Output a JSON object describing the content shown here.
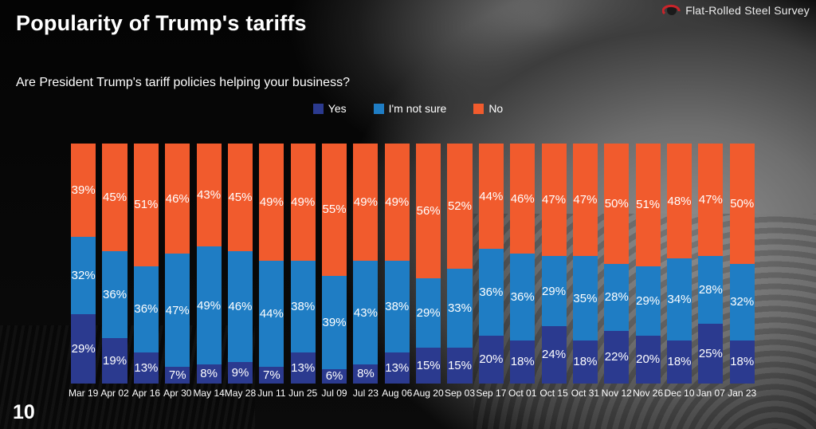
{
  "page": {
    "title": "Popularity of Trump's tariffs",
    "subtitle": "Are President Trump's tariff policies helping your business?",
    "page_number": "10",
    "brand": "Flat-Rolled Steel Survey"
  },
  "colors": {
    "yes": "#2b3a8f",
    "not_sure": "#1f7dc4",
    "no": "#f15b2d",
    "logo_red": "#c9242a",
    "text": "#ffffff"
  },
  "legend": [
    {
      "label": "Yes",
      "color": "#2b3a8f"
    },
    {
      "label": "I'm not sure",
      "color": "#1f7dc4"
    },
    {
      "label": "No",
      "color": "#f15b2d"
    }
  ],
  "chart_data": {
    "type": "bar",
    "stacked": true,
    "title": "Popularity of Trump's tariffs",
    "subtitle": "Are President Trump's tariff policies helping your business?",
    "value_suffix": "%",
    "ylim": [
      0,
      100
    ],
    "grid": false,
    "legend_position": "top",
    "categories": [
      "Mar 19",
      "Apr 02",
      "Apr 16",
      "Apr 30",
      "May 14",
      "May 28",
      "Jun 11",
      "Jun 25",
      "Jul 09",
      "Jul 23",
      "Aug 06",
      "Aug 20",
      "Sep 03",
      "Sep 17",
      "Oct 01",
      "Oct 15",
      "Oct 31",
      "Nov 12",
      "Nov 26",
      "Dec 10",
      "Jan 07",
      "Jan 23"
    ],
    "series": [
      {
        "name": "Yes",
        "color": "#2b3a8f",
        "values": [
          29,
          19,
          13,
          7,
          8,
          9,
          7,
          13,
          6,
          8,
          13,
          15,
          15,
          20,
          18,
          24,
          18,
          22,
          20,
          18,
          25,
          18
        ]
      },
      {
        "name": "I'm not sure",
        "color": "#1f7dc4",
        "values": [
          32,
          36,
          36,
          47,
          49,
          46,
          44,
          38,
          39,
          43,
          38,
          29,
          33,
          36,
          36,
          29,
          35,
          28,
          29,
          34,
          28,
          32
        ]
      },
      {
        "name": "No",
        "color": "#f15b2d",
        "values": [
          39,
          45,
          51,
          46,
          43,
          45,
          49,
          49,
          55,
          49,
          49,
          56,
          52,
          44,
          46,
          47,
          47,
          50,
          51,
          48,
          47,
          50
        ]
      }
    ]
  }
}
